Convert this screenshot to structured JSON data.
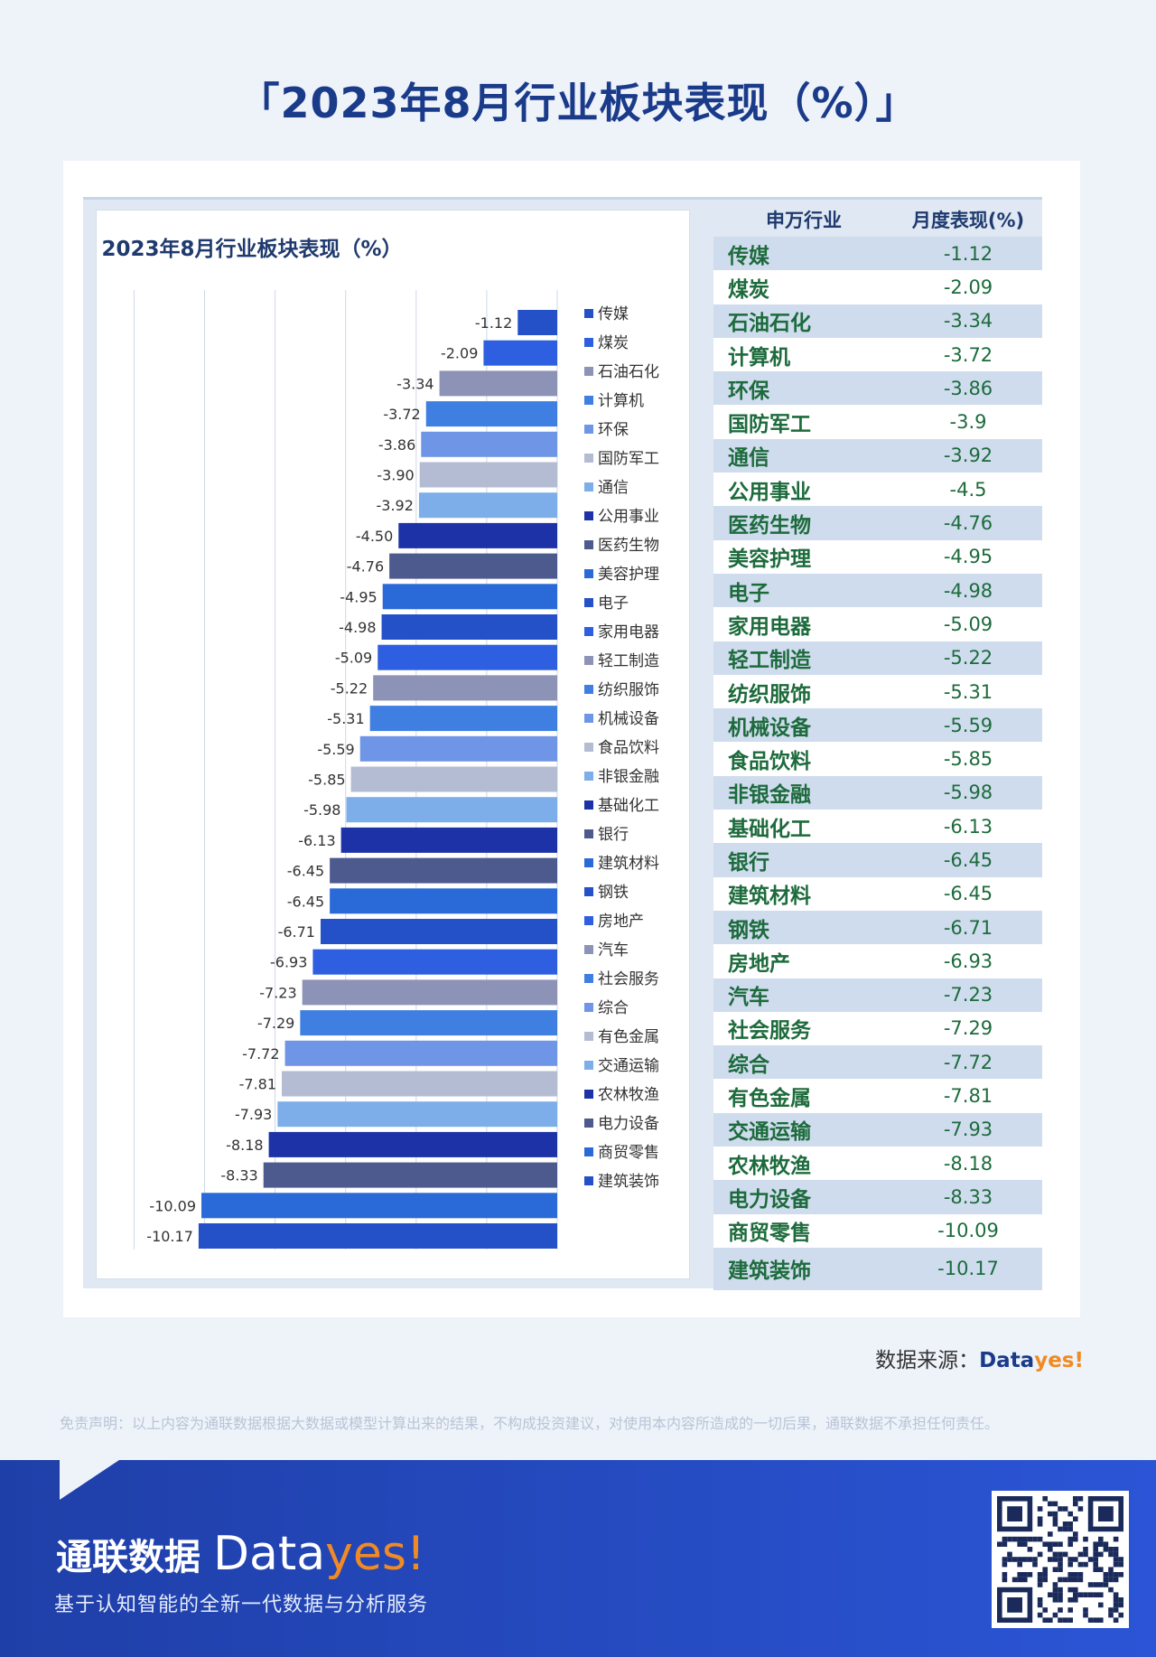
{
  "page": {
    "title": "「2023年8月行业板块表现（%）」"
  },
  "colors": {
    "palette": [
      "#2450c8",
      "#2e5fe0",
      "#8d93b6",
      "#3f7fe2",
      "#6f95e6",
      "#b4bcd4",
      "#7eaeea",
      "#1d32a6",
      "#4d5a8e",
      "#2a6ad8"
    ]
  },
  "chart_data": {
    "type": "bar",
    "orientation": "horizontal",
    "title": "2023年8月行业板块表现（%）",
    "xlim": [
      -10.5,
      0
    ],
    "grid": true,
    "legend_position": "right",
    "categories": [
      "传媒",
      "煤炭",
      "石油石化",
      "计算机",
      "环保",
      "国防军工",
      "通信",
      "公用事业",
      "医药生物",
      "美容护理",
      "电子",
      "家用电器",
      "轻工制造",
      "纺织服饰",
      "机械设备",
      "食品饮料",
      "非银金融",
      "基础化工",
      "银行",
      "建筑材料",
      "钢铁",
      "房地产",
      "汽车",
      "社会服务",
      "综合",
      "有色金属",
      "交通运输",
      "农林牧渔",
      "电力设备",
      "商贸零售",
      "建筑装饰"
    ],
    "values": [
      -1.12,
      -2.09,
      -3.34,
      -3.72,
      -3.86,
      -3.9,
      -3.92,
      -4.5,
      -4.76,
      -4.95,
      -4.98,
      -5.09,
      -5.22,
      -5.31,
      -5.59,
      -5.85,
      -5.98,
      -6.13,
      -6.45,
      -6.45,
      -6.71,
      -6.93,
      -7.23,
      -7.29,
      -7.72,
      -7.81,
      -7.93,
      -8.18,
      -8.33,
      -10.09,
      -10.17
    ],
    "value_labels": [
      "-1.12",
      "-2.09",
      "-3.34",
      "-3.72",
      "-3.86",
      "-3.90",
      "-3.92",
      "-4.50",
      "-4.76",
      "-4.95",
      "-4.98",
      "-5.09",
      "-5.22",
      "-5.31",
      "-5.59",
      "-5.85",
      "-5.98",
      "-6.13",
      "-6.45",
      "-6.45",
      "-6.71",
      "-6.93",
      "-7.23",
      "-7.29",
      "-7.72",
      "-7.81",
      "-7.93",
      "-8.18",
      "-8.33",
      "-10.09",
      "-10.17"
    ]
  },
  "table": {
    "header_industry": "申万行业",
    "header_perf": "月度表现(%)",
    "rows": [
      {
        "industry": "传媒",
        "perf": "-1.12"
      },
      {
        "industry": "煤炭",
        "perf": "-2.09"
      },
      {
        "industry": "石油石化",
        "perf": "-3.34"
      },
      {
        "industry": "计算机",
        "perf": "-3.72"
      },
      {
        "industry": "环保",
        "perf": "-3.86"
      },
      {
        "industry": "国防军工",
        "perf": "-3.9"
      },
      {
        "industry": "通信",
        "perf": "-3.92"
      },
      {
        "industry": "公用事业",
        "perf": "-4.5"
      },
      {
        "industry": "医药生物",
        "perf": "-4.76"
      },
      {
        "industry": "美容护理",
        "perf": "-4.95"
      },
      {
        "industry": "电子",
        "perf": "-4.98"
      },
      {
        "industry": "家用电器",
        "perf": "-5.09"
      },
      {
        "industry": "轻工制造",
        "perf": "-5.22"
      },
      {
        "industry": "纺织服饰",
        "perf": "-5.31"
      },
      {
        "industry": "机械设备",
        "perf": "-5.59"
      },
      {
        "industry": "食品饮料",
        "perf": "-5.85"
      },
      {
        "industry": "非银金融",
        "perf": "-5.98"
      },
      {
        "industry": "基础化工",
        "perf": "-6.13"
      },
      {
        "industry": "银行",
        "perf": "-6.45"
      },
      {
        "industry": "建筑材料",
        "perf": "-6.45"
      },
      {
        "industry": "钢铁",
        "perf": "-6.71"
      },
      {
        "industry": "房地产",
        "perf": "-6.93"
      },
      {
        "industry": "汽车",
        "perf": "-7.23"
      },
      {
        "industry": "社会服务",
        "perf": "-7.29"
      },
      {
        "industry": "综合",
        "perf": "-7.72"
      },
      {
        "industry": "有色金属",
        "perf": "-7.81"
      },
      {
        "industry": "交通运输",
        "perf": "-7.93"
      },
      {
        "industry": "农林牧渔",
        "perf": "-8.18"
      },
      {
        "industry": "电力设备",
        "perf": "-8.33"
      },
      {
        "industry": "商贸零售",
        "perf": "-10.09"
      },
      {
        "industry": "建筑装饰",
        "perf": "-10.17"
      }
    ]
  },
  "source": {
    "label": "数据来源：",
    "brand_main": "Data",
    "brand_accent": "yes!"
  },
  "disclaimer": "免责声明：以上内容为通联数据根据大数据或模型计算出来的结果，不构成投资建议，对使用本内容所造成的一切后果，通联数据不承担任何责任。",
  "footer": {
    "brand_cn": "通联数据",
    "brand_logo_main": "Data",
    "brand_logo_accent": "yes!",
    "tagline": "基于认知智能的全新一代数据与分析服务"
  }
}
